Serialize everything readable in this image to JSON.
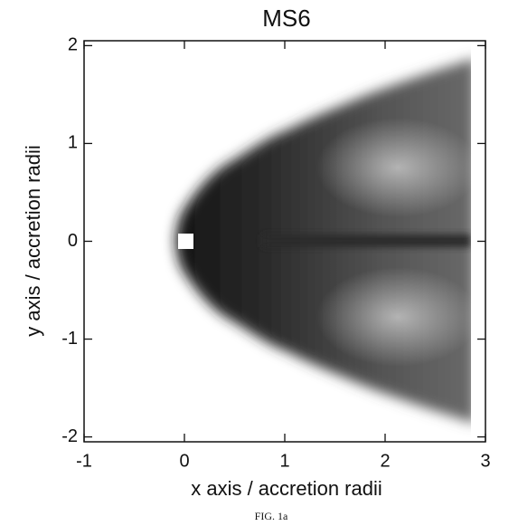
{
  "chart_data": {
    "type": "density-map",
    "title": "MS6",
    "x_label": "x axis / accretion radii",
    "y_label": "y axis / accretion radii",
    "xlim": [
      -1,
      3
    ],
    "xticks": [
      -1,
      0,
      1,
      2,
      3
    ],
    "ylim": [
      -2.05,
      2.05
    ],
    "yticks": [
      -2,
      -1,
      0,
      1,
      2
    ],
    "caption": "FIG. 1a"
  }
}
